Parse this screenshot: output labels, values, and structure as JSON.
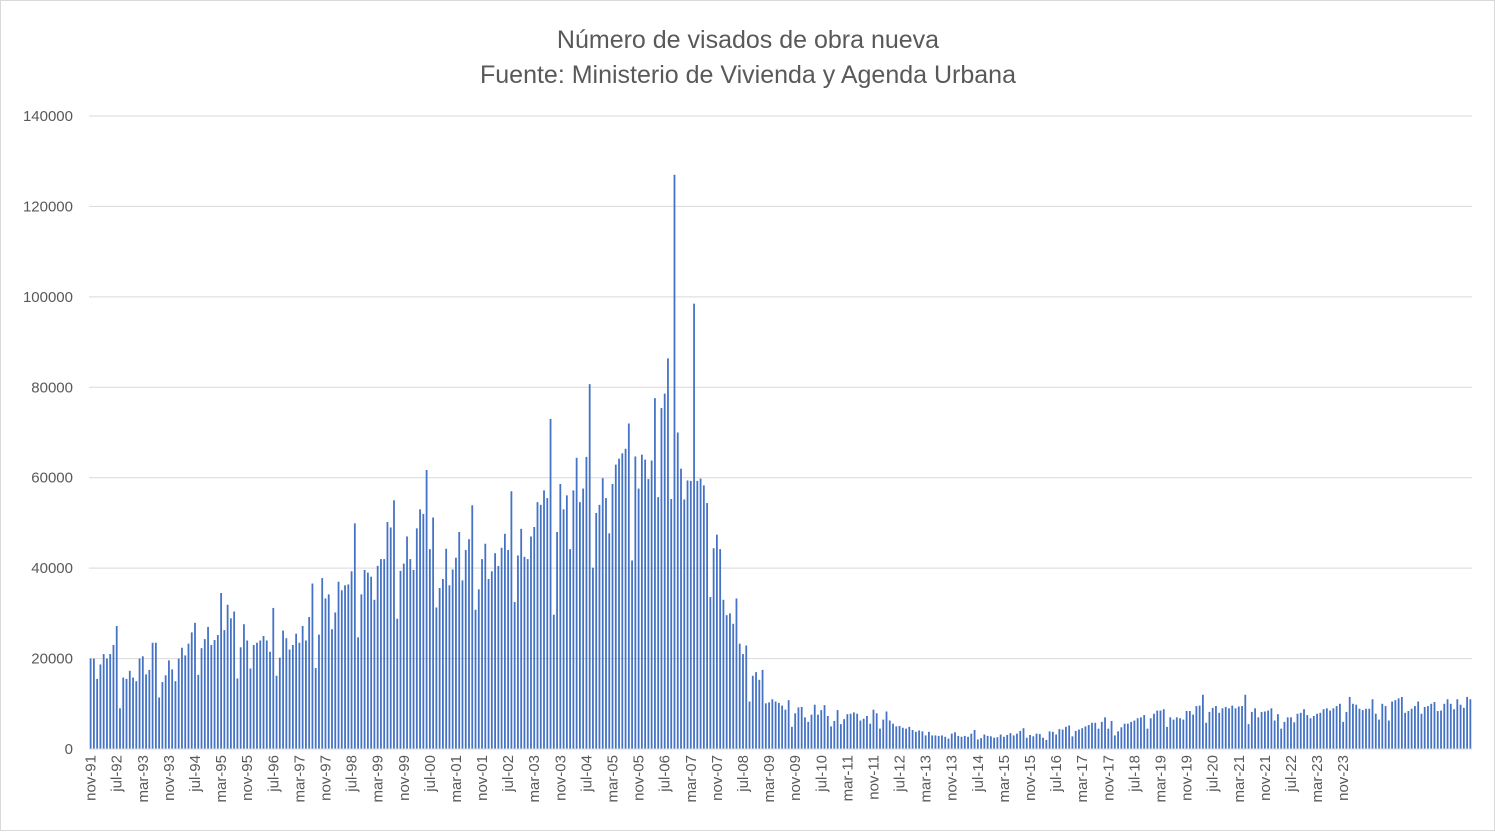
{
  "chart_data": {
    "type": "bar",
    "title": "Número de visados de obra nueva",
    "subtitle": "Fuente: Ministerio de Vivienda y Agenda Urbana",
    "xlabel": "",
    "ylabel": "",
    "ylim": [
      0,
      140000
    ],
    "y_ticks": [
      "0",
      "20000",
      "40000",
      "60000",
      "80000",
      "100000",
      "120000",
      "140000"
    ],
    "x_tick_labels": [
      "nov-91",
      "jul-92",
      "mar-93",
      "nov-93",
      "jul-94",
      "mar-95",
      "nov-95",
      "jul-96",
      "mar-97",
      "nov-97",
      "jul-98",
      "mar-99",
      "nov-99",
      "jul-00",
      "mar-01",
      "nov-01",
      "jul-02",
      "mar-03",
      "nov-03",
      "jul-04",
      "mar-05",
      "nov-05",
      "jul-06",
      "mar-07",
      "nov-07",
      "jul-08",
      "mar-09",
      "nov-09",
      "jul-10",
      "mar-11",
      "nov-11",
      "jul-12",
      "mar-13",
      "nov-13",
      "jul-14",
      "mar-15",
      "nov-15",
      "jul-16",
      "mar-17",
      "nov-17",
      "jul-18",
      "mar-19",
      "nov-19",
      "jul-20",
      "mar-21",
      "nov-21",
      "jul-22",
      "mar-23",
      "nov-23"
    ],
    "x_start": "nov-91",
    "grid": true,
    "legend": "none",
    "bar_color": "#4472c4",
    "values": [
      20000,
      20000,
      15500,
      18700,
      21000,
      20000,
      21000,
      23000,
      27200,
      9000,
      15800,
      15500,
      17300,
      15800,
      15000,
      20000,
      20500,
      16500,
      17500,
      23500,
      23500,
      11400,
      14800,
      16300,
      19600,
      17600,
      15000,
      20000,
      22400,
      20700,
      23300,
      25800,
      27900,
      16400,
      22300,
      24300,
      27000,
      23000,
      24100,
      25200,
      34500,
      26300,
      31900,
      28900,
      30400,
      15600,
      22500,
      27600,
      24000,
      17800,
      23000,
      23500,
      24000,
      25000,
      24000,
      21500,
      31200,
      16200,
      20200,
      26200,
      24500,
      22000,
      23000,
      25500,
      23500,
      27200,
      24000,
      29200,
      36600,
      17900,
      25300,
      37800,
      33300,
      34200,
      26500,
      30200,
      37000,
      35100,
      36200,
      36400,
      39300,
      49900,
      24700,
      34200,
      39600,
      39000,
      38100,
      33000,
      40500,
      42000,
      42000,
      50200,
      49000,
      55000,
      28800,
      39400,
      41000,
      47000,
      42000,
      39600,
      48800,
      53000,
      52000,
      61700,
      44200,
      51200,
      31300,
      35600,
      37600,
      44300,
      36200,
      39700,
      42300,
      48000,
      37300,
      44000,
      46400,
      53900,
      30800,
      35300,
      42000,
      45400,
      37600,
      39300,
      43300,
      40500,
      44500,
      47600,
      44000,
      57000,
      32500,
      42800,
      48700,
      42500,
      42000,
      47000,
      49100,
      54600,
      54000,
      57200,
      55500,
      73000,
      29700,
      48000,
      58600,
      53000,
      56100,
      44200,
      57200,
      64400,
      54600,
      57600,
      64600,
      80700,
      40100,
      52200,
      54000,
      59900,
      55500,
      47700,
      58600,
      62900,
      64200,
      65400,
      66400,
      72000,
      41700,
      64700,
      57600,
      65100,
      64000,
      59700,
      63800,
      77600,
      55700,
      75400,
      78600,
      86400,
      55300,
      127000,
      70000,
      62000,
      55200,
      59400,
      59300,
      98500,
      59300,
      59800,
      58300,
      54400,
      33600,
      44400,
      47400,
      44200,
      33000,
      29600,
      30000,
      27700,
      33300,
      23300,
      21000,
      22900,
      10500,
      16200,
      17000,
      15300,
      17500,
      10100,
      10300,
      11000,
      10500,
      10200,
      9600,
      8700,
      10800,
      4900,
      7900,
      9200,
      9300,
      7000,
      6000,
      7600,
      9800,
      7600,
      8600,
      9700,
      7300,
      5000,
      6200,
      8600,
      5500,
      6600,
      7700,
      7800,
      8100,
      7800,
      6300,
      6700,
      7300,
      5600,
      8700,
      7900,
      4500,
      6500,
      8300,
      6300,
      5600,
      5000,
      5100,
      4700,
      4500,
      4900,
      4200,
      3800,
      4100,
      3900,
      3000,
      3800,
      3000,
      3000,
      2900,
      3000,
      2700,
      2300,
      3400,
      3700,
      2900,
      2700,
      2900,
      2700,
      3400,
      4200,
      2100,
      2400,
      3200,
      2900,
      2800,
      2500,
      2600,
      3200,
      2700,
      3100,
      3500,
      3000,
      3400,
      4000,
      4600,
      2500,
      3100,
      2800,
      3400,
      3300,
      2500,
      2000,
      3900,
      3800,
      3200,
      4400,
      4300,
      4900,
      5200,
      2800,
      4000,
      4300,
      4600,
      5000,
      5300,
      5800,
      5800,
      4500,
      6000,
      7000,
      4500,
      6200,
      3000,
      3900,
      4800,
      5600,
      5600,
      6000,
      6300,
      6800,
      7000,
      7500,
      4500,
      6800,
      7800,
      8500,
      8500,
      8800,
      4900,
      7000,
      6500,
      7000,
      6800,
      6500,
      8400,
      8400,
      7600,
      9500,
      9600,
      12000,
      5800,
      8200,
      9100,
      9500,
      8000,
      9000,
      9300,
      9000,
      9600,
      9000,
      9400,
      9500,
      12000,
      5500,
      8200,
      9000,
      7000,
      8200,
      8300,
      8500,
      9000,
      6300,
      7700,
      4500,
      6000,
      7000,
      7000,
      5900,
      7800,
      8000,
      8800,
      7500,
      6800,
      7300,
      7800,
      8000,
      8800,
      9000,
      8500,
      9000,
      9500,
      10000,
      6000,
      8200,
      11500,
      10000,
      9800,
      8900,
      8600,
      8900,
      8900,
      11000,
      7800,
      6500,
      10000,
      9500,
      6300,
      10500,
      10800,
      11200,
      11500,
      8000,
      8400,
      8900,
      9500,
      10500,
      7800,
      9300,
      9500,
      10000,
      10400,
      8400,
      8500,
      10000,
      11000,
      10000,
      8800,
      11000,
      9800,
      9100,
      11500,
      11000
    ]
  }
}
